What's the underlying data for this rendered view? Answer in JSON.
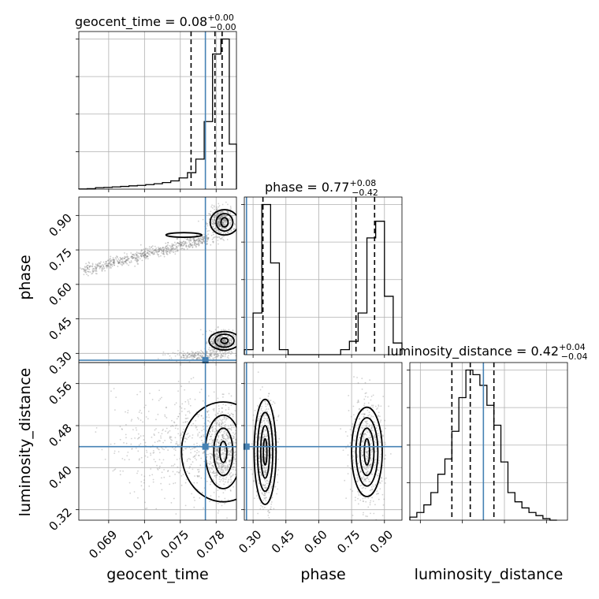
{
  "colors": {
    "truth": "#4682b4",
    "hist": "#000000",
    "scatter": "#7f7f7f",
    "contour_fills": [
      "#d9d9d9",
      "#a6a6a6",
      "#737373",
      "#262626"
    ]
  },
  "chart_data": {
    "type": "corner",
    "grid": true,
    "parameters": [
      {
        "name": "geocent_time",
        "label": "geocent_time",
        "range": [
          0.0665,
          0.0797
        ],
        "ticks": [
          0.069,
          0.072,
          0.075,
          0.078
        ],
        "tick_labels": [
          "0.069",
          "0.072",
          "0.075",
          "0.078"
        ],
        "truth": 0.0771,
        "quantiles": [
          0.0759,
          0.0779,
          0.0785
        ],
        "title_main": "geocent_time = 0.08",
        "title_sup": "+0.00",
        "title_sub": "−0.00",
        "histogram": {
          "edges": [
            0.0665,
            0.0672,
            0.0679,
            0.0686,
            0.0693,
            0.07,
            0.0707,
            0.0714,
            0.0721,
            0.0728,
            0.0735,
            0.0742,
            0.0749,
            0.0756,
            0.0763,
            0.077,
            0.0777,
            0.0784,
            0.0791,
            0.0797
          ],
          "counts": [
            0.1,
            0.3,
            1,
            1.2,
            1.5,
            1.8,
            2.2,
            2.5,
            3,
            3.6,
            4.4,
            5.5,
            7.5,
            11,
            20,
            45,
            90,
            100,
            30
          ]
        }
      },
      {
        "name": "phase",
        "label": "phase",
        "range": [
          0.26,
          0.98
        ],
        "ticks": [
          0.3,
          0.45,
          0.6,
          0.75,
          0.9
        ],
        "tick_labels": [
          "0.30",
          "0.45",
          "0.60",
          "0.75",
          "0.90"
        ],
        "truth": 0.27,
        "quantiles": [
          0.345,
          0.77,
          0.855
        ],
        "title_main": "phase = 0.77",
        "title_sup": "+0.08",
        "title_sub": "−0.42",
        "histogram": {
          "edges": [
            0.26,
            0.3,
            0.34,
            0.38,
            0.42,
            0.46,
            0.5,
            0.54,
            0.58,
            0.62,
            0.66,
            0.7,
            0.74,
            0.78,
            0.82,
            0.86,
            0.9,
            0.94,
            0.98
          ],
          "counts": [
            3,
            25,
            90,
            55,
            3,
            0,
            0,
            0,
            0,
            0,
            0,
            3,
            8,
            25,
            70,
            80,
            35,
            7
          ]
        }
      },
      {
        "name": "luminosity_distance",
        "label": "luminosity_distance",
        "range": [
          0.3,
          0.6
        ],
        "ticks": [
          0.32,
          0.4,
          0.48,
          0.56
        ],
        "tick_labels": [
          "0.32",
          "0.40",
          "0.48",
          "0.56"
        ],
        "truth": 0.44,
        "quantiles": [
          0.38,
          0.415,
          0.46
        ],
        "title_main": "luminosity_distance = 0.42",
        "title_sup": "+0.04",
        "title_sub": "−0.04",
        "histogram": {
          "edges": [
            0.3,
            0.3133,
            0.3267,
            0.34,
            0.3533,
            0.3667,
            0.38,
            0.3933,
            0.4067,
            0.42,
            0.4333,
            0.4467,
            0.46,
            0.4733,
            0.4867,
            0.5,
            0.5133,
            0.5267,
            0.54,
            0.5533,
            0.5667,
            0.58
          ],
          "counts": [
            2,
            5,
            10,
            18,
            30,
            40,
            58,
            80,
            98,
            95,
            88,
            75,
            62,
            38,
            18,
            12,
            8,
            5,
            3,
            1,
            0
          ]
        }
      }
    ]
  }
}
